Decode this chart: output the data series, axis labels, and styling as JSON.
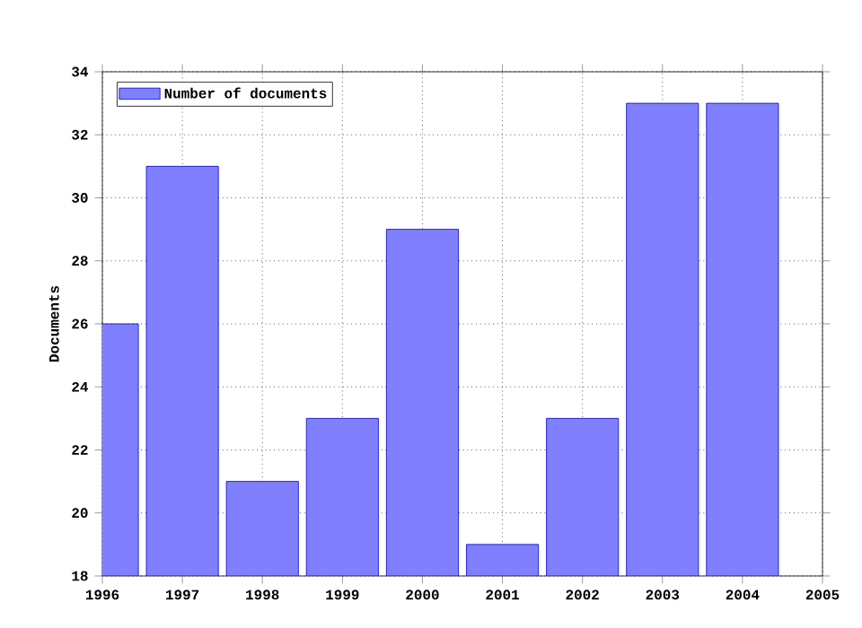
{
  "chart_data": {
    "type": "bar",
    "ylabel": "Documents",
    "x": [
      1996,
      1997,
      1998,
      1999,
      2000,
      2001,
      2002,
      2003,
      2004
    ],
    "series": [
      {
        "name": "Number of documents",
        "color": "#8080ff",
        "values": [
          26,
          31,
          21,
          23,
          29,
          19,
          23,
          33,
          33
        ]
      }
    ],
    "xlim": [
      1996,
      2005
    ],
    "xticks": [
      1996,
      1997,
      1998,
      1999,
      2000,
      2001,
      2002,
      2003,
      2004,
      2005
    ],
    "ylim": [
      18,
      34
    ],
    "yticks": [
      18,
      20,
      22,
      24,
      26,
      28,
      30,
      32,
      34
    ],
    "grid": true,
    "legend": "top left"
  }
}
